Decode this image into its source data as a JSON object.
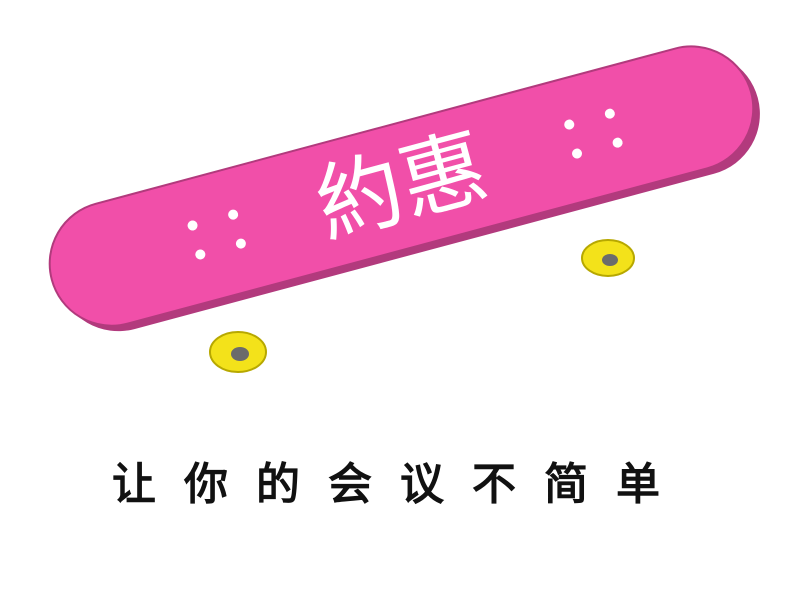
{
  "deck": {
    "label": "約惠",
    "deck_color": "#f14fa9",
    "deck_edge_color": "#b23a7d",
    "wheel_color": "#f3e21a",
    "label_color": "#ffffff"
  },
  "tagline": {
    "text": "让你的会议不简单"
  },
  "icons": {
    "skateboard": "skateboard-icon"
  }
}
